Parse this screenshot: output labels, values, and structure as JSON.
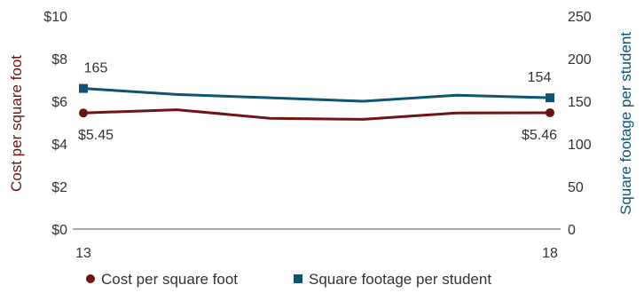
{
  "chart_data": {
    "type": "line",
    "x": [
      13,
      14,
      15,
      16,
      17,
      18
    ],
    "x_tick_labels": [
      "13",
      "18"
    ],
    "left_axis": {
      "label": "Cost per square foot",
      "ticks": [
        "$0",
        "$2",
        "$4",
        "$6",
        "$8",
        "$10"
      ],
      "ylim": [
        0,
        10
      ]
    },
    "right_axis": {
      "label": "Square footage per student",
      "ticks": [
        "0",
        "50",
        "100",
        "150",
        "200",
        "250"
      ],
      "ylim": [
        0,
        250
      ]
    },
    "series": [
      {
        "name": "Cost per square foot",
        "axis": "left",
        "color": "#6e1414",
        "marker": "circle",
        "values": [
          5.45,
          5.6,
          5.2,
          5.15,
          5.45,
          5.46
        ],
        "labels": [
          {
            "index": 0,
            "text": "$5.45"
          },
          {
            "index": 5,
            "text": "$5.46"
          }
        ]
      },
      {
        "name": "Square footage per student",
        "axis": "right",
        "color": "#0e5470",
        "marker": "square",
        "values": [
          165,
          158,
          154,
          150,
          157,
          154
        ],
        "labels": [
          {
            "index": 0,
            "text": "165"
          },
          {
            "index": 5,
            "text": "154"
          }
        ]
      }
    ],
    "legend_position": "bottom",
    "grid": false
  }
}
